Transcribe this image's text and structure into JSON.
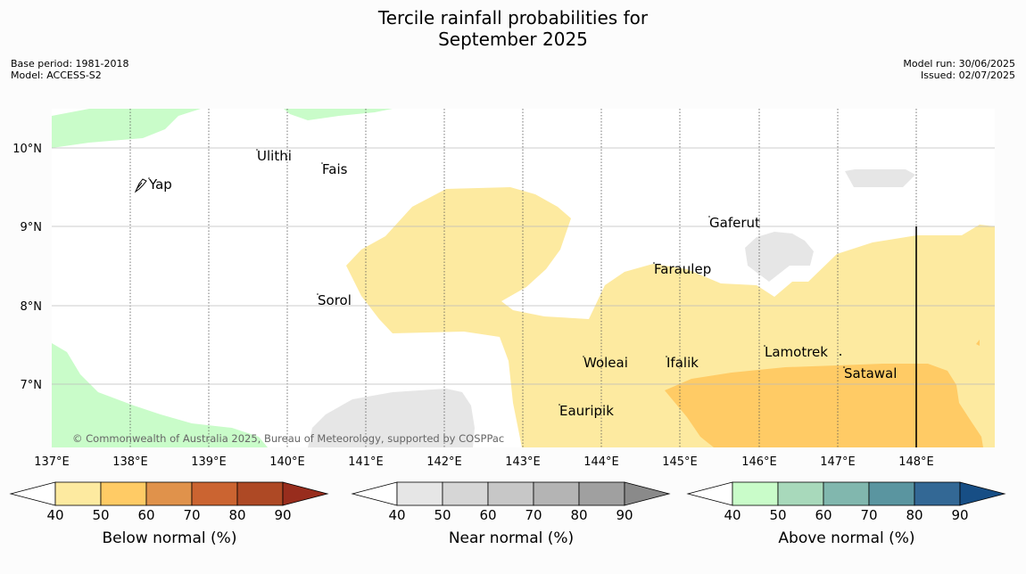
{
  "title_line1": "Tercile rainfall probabilities for",
  "title_line2": "September 2025",
  "meta_left": {
    "base_period": "Base period: 1981-2018",
    "model": "Model: ACCESS-S2"
  },
  "meta_right": {
    "model_run": "Model run: 30/06/2025",
    "issued": "Issued: 02/07/2025"
  },
  "lon_labels": [
    "137°E",
    "138°E",
    "139°E",
    "140°E",
    "141°E",
    "142°E",
    "143°E",
    "144°E",
    "145°E",
    "146°E",
    "147°E",
    "148°E"
  ],
  "lat_labels": [
    "10°N",
    "9°N",
    "8°N",
    "7°N"
  ],
  "islands": [
    "Ulithi",
    "Fais",
    "Yap",
    "Gaferut",
    "Faraulep",
    "Sorol",
    "Lamotrek",
    "Woleai",
    "Ifalik",
    "Satawal",
    "Eauripik"
  ],
  "copyright": "© Commonwealth of Australia 2025, Bureau of Meteorology, supported by COSPPac",
  "legends": [
    {
      "title": "Below normal (%)",
      "ticks": [
        "40",
        "50",
        "60",
        "70",
        "80",
        "90"
      ],
      "colors": [
        "#fdeaa0",
        "#ffcb65",
        "#e0924b",
        "#cb6431",
        "#ae4925",
        "#982d1d"
      ]
    },
    {
      "title": "Near normal (%)",
      "ticks": [
        "40",
        "50",
        "60",
        "70",
        "80",
        "90"
      ],
      "colors": [
        "#e6e6e6",
        "#d6d6d6",
        "#c7c7c7",
        "#b4b4b4",
        "#a0a0a0",
        "#8a8a8a"
      ]
    },
    {
      "title": "Above normal (%)",
      "ticks": [
        "40",
        "50",
        "60",
        "70",
        "80",
        "90"
      ],
      "colors": [
        "#c9fcc9",
        "#a8d9bb",
        "#81b7ae",
        "#5a95a0",
        "#336895",
        "#174e85"
      ]
    }
  ],
  "colors": {
    "below_40_50": "#fdeaa0",
    "below_50_60": "#ffcb65",
    "near_40_50": "#e6e6e6",
    "above_40_50": "#c9fcc9",
    "grid": "#bbbbbb"
  }
}
